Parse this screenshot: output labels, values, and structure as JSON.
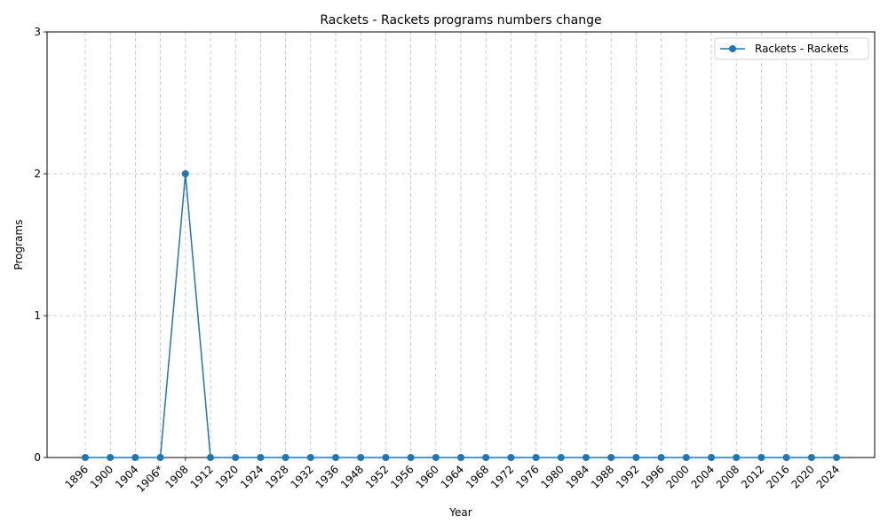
{
  "chart_data": {
    "type": "line",
    "title": "Rackets - Rackets programs numbers change",
    "xlabel": "Year",
    "ylabel": "Programs",
    "categories": [
      "1896",
      "1900",
      "1904",
      "1906*",
      "1908",
      "1912",
      "1920",
      "1924",
      "1928",
      "1932",
      "1936",
      "1948",
      "1952",
      "1956",
      "1960",
      "1964",
      "1968",
      "1972",
      "1976",
      "1980",
      "1984",
      "1988",
      "1992",
      "1996",
      "2000",
      "2004",
      "2008",
      "2012",
      "2016",
      "2020",
      "2024"
    ],
    "series": [
      {
        "name": "Rackets - Rackets",
        "color": "#1f77b4",
        "marker": "circle",
        "values": [
          0,
          0,
          0,
          0,
          2,
          0,
          0,
          0,
          0,
          0,
          0,
          0,
          0,
          0,
          0,
          0,
          0,
          0,
          0,
          0,
          0,
          0,
          0,
          0,
          0,
          0,
          0,
          0,
          0,
          0,
          0
        ]
      }
    ],
    "ylim": [
      0,
      3
    ],
    "yticks": [
      0,
      1,
      2,
      3
    ],
    "grid": true,
    "grid_style": "dashed",
    "legend_position": "upper right"
  }
}
